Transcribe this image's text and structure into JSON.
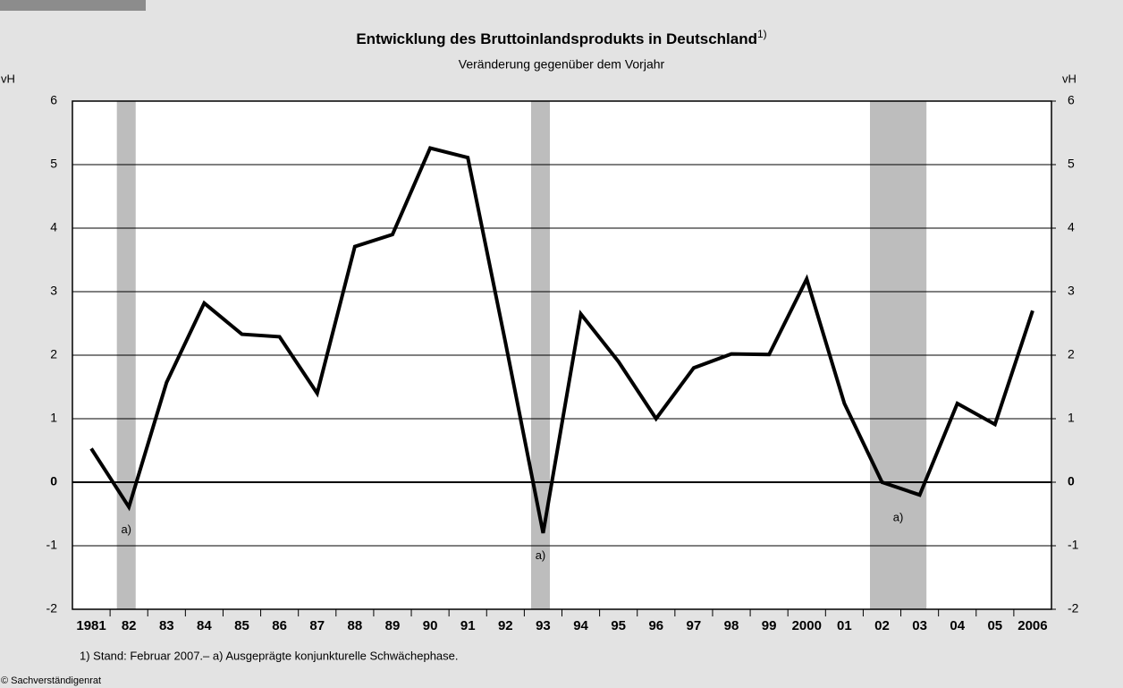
{
  "chart_data": {
    "type": "line",
    "title": "Entwicklung des Bruttoinlandsprodukts in Deutschland",
    "title_note": "1)",
    "subtitle": "Veränderung gegenüber dem Vorjahr",
    "y_label": "vH",
    "y2_label": "vH",
    "categories": [
      "1981",
      "82",
      "83",
      "84",
      "85",
      "86",
      "87",
      "88",
      "89",
      "90",
      "91",
      "92",
      "93",
      "94",
      "95",
      "96",
      "97",
      "98",
      "99",
      "2000",
      "01",
      "02",
      "03",
      "04",
      "05",
      "2006"
    ],
    "series": [
      {
        "name": "BIP",
        "color": "#000000",
        "values": [
          0.53,
          -0.39,
          1.57,
          2.82,
          2.33,
          2.29,
          1.4,
          3.71,
          3.9,
          5.26,
          5.11,
          2.2,
          -0.8,
          2.65,
          1.9,
          1.0,
          1.8,
          2.02,
          2.01,
          3.2,
          1.24,
          0.0,
          -0.2,
          1.24,
          0.91,
          2.7
        ]
      }
    ],
    "ylim": [
      -2,
      6
    ],
    "yticks": [
      -2,
      -1,
      0,
      1,
      2,
      3,
      4,
      5,
      6
    ],
    "y2lim": [
      -2,
      6
    ],
    "y2ticks": [
      -2,
      -1,
      0,
      1,
      2,
      3,
      4,
      5,
      6
    ],
    "grid": true,
    "highlights": [
      {
        "start": "82",
        "end": "82",
        "label": "a)"
      },
      {
        "start": "93",
        "end": "93",
        "label": "a)"
      },
      {
        "start": "02",
        "end": "03",
        "label": "a)"
      }
    ],
    "footnote": "1) Stand: Februar 2007.– a) Ausgeprägte konjunkturelle Schwächephase.",
    "source": "© Sachverständigenrat"
  }
}
